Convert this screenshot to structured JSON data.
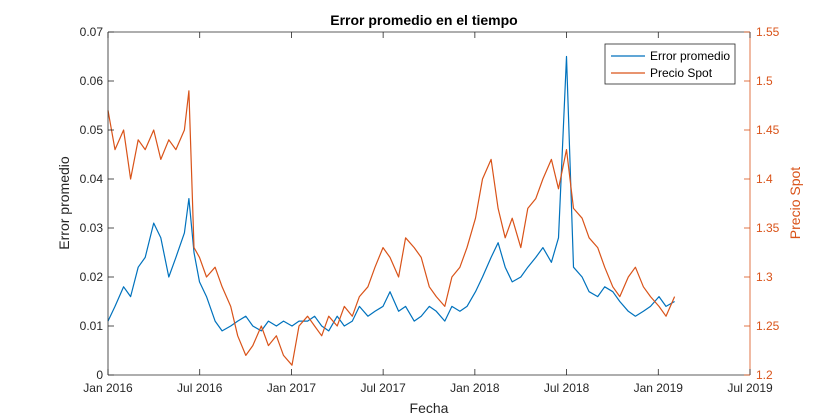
{
  "chart_data": {
    "type": "line",
    "title": "Error promedio en el tiempo",
    "xlabel": "Fecha",
    "ylabel_left": "Error promedio",
    "ylabel_right": "Precio Spot",
    "x_ticks": [
      "Jan 2016",
      "Jul 2016",
      "Jan 2017",
      "Jul 2017",
      "Jan 2018",
      "Jul 2018",
      "Jan 2019",
      "Jul 2019"
    ],
    "y_left_ticks": [
      "0",
      "0.01",
      "0.02",
      "0.03",
      "0.04",
      "0.05",
      "0.06",
      "0.07"
    ],
    "y_right_ticks": [
      "1.2",
      "1.25",
      "1.3",
      "1.35",
      "1.4",
      "1.45",
      "1.5",
      "1.55"
    ],
    "xlim": [
      "2016-01-01",
      "2019-07-01"
    ],
    "ylim_left": [
      0,
      0.07
    ],
    "ylim_right": [
      1.2,
      1.55
    ],
    "grid": false,
    "legend_position": "top-right",
    "colors": {
      "error": "#0072BD",
      "spot": "#D95319",
      "axis": "#262626"
    },
    "series": [
      {
        "name": "Error promedio",
        "axis": "left",
        "color": "#0072BD",
        "x": [
          "2016-01-01",
          "2016-01-15",
          "2016-02-01",
          "2016-02-15",
          "2016-03-01",
          "2016-03-15",
          "2016-04-01",
          "2016-04-15",
          "2016-05-01",
          "2016-05-15",
          "2016-06-01",
          "2016-06-10",
          "2016-06-20",
          "2016-07-01",
          "2016-07-15",
          "2016-08-01",
          "2016-08-15",
          "2016-09-01",
          "2016-09-15",
          "2016-10-01",
          "2016-10-15",
          "2016-11-01",
          "2016-11-15",
          "2016-12-01",
          "2016-12-15",
          "2017-01-01",
          "2017-01-15",
          "2017-02-01",
          "2017-02-15",
          "2017-03-01",
          "2017-03-15",
          "2017-04-01",
          "2017-04-15",
          "2017-05-01",
          "2017-05-15",
          "2017-06-01",
          "2017-06-15",
          "2017-07-01",
          "2017-07-15",
          "2017-08-01",
          "2017-08-15",
          "2017-09-01",
          "2017-09-15",
          "2017-10-01",
          "2017-10-15",
          "2017-11-01",
          "2017-11-15",
          "2017-12-01",
          "2017-12-15",
          "2018-01-01",
          "2018-01-15",
          "2018-02-01",
          "2018-02-15",
          "2018-03-01",
          "2018-03-15",
          "2018-04-01",
          "2018-04-15",
          "2018-05-01",
          "2018-05-15",
          "2018-06-01",
          "2018-06-15",
          "2018-07-01",
          "2018-07-15",
          "2018-08-01",
          "2018-08-15",
          "2018-09-01",
          "2018-09-15",
          "2018-10-01",
          "2018-10-15",
          "2018-11-01",
          "2018-11-15",
          "2018-12-01",
          "2018-12-15",
          "2019-01-01",
          "2019-01-15",
          "2019-02-01"
        ],
        "values": [
          0.011,
          0.014,
          0.018,
          0.016,
          0.022,
          0.024,
          0.031,
          0.028,
          0.02,
          0.024,
          0.029,
          0.036,
          0.025,
          0.019,
          0.016,
          0.011,
          0.009,
          0.01,
          0.011,
          0.012,
          0.01,
          0.009,
          0.011,
          0.01,
          0.011,
          0.01,
          0.011,
          0.011,
          0.012,
          0.01,
          0.009,
          0.012,
          0.01,
          0.011,
          0.014,
          0.012,
          0.013,
          0.014,
          0.017,
          0.013,
          0.014,
          0.011,
          0.012,
          0.014,
          0.013,
          0.011,
          0.014,
          0.013,
          0.014,
          0.017,
          0.02,
          0.024,
          0.027,
          0.022,
          0.019,
          0.02,
          0.022,
          0.024,
          0.026,
          0.023,
          0.028,
          0.065,
          0.022,
          0.02,
          0.017,
          0.016,
          0.018,
          0.017,
          0.015,
          0.013,
          0.012,
          0.013,
          0.014,
          0.016,
          0.014,
          0.015
        ]
      },
      {
        "name": "Precio Spot",
        "axis": "right",
        "color": "#D95319",
        "x": [
          "2016-01-01",
          "2016-01-15",
          "2016-02-01",
          "2016-02-15",
          "2016-03-01",
          "2016-03-15",
          "2016-04-01",
          "2016-04-15",
          "2016-05-01",
          "2016-05-15",
          "2016-06-01",
          "2016-06-10",
          "2016-06-20",
          "2016-07-01",
          "2016-07-15",
          "2016-08-01",
          "2016-08-15",
          "2016-09-01",
          "2016-09-15",
          "2016-10-01",
          "2016-10-15",
          "2016-11-01",
          "2016-11-15",
          "2016-12-01",
          "2016-12-15",
          "2017-01-01",
          "2017-01-15",
          "2017-02-01",
          "2017-02-15",
          "2017-03-01",
          "2017-03-15",
          "2017-04-01",
          "2017-04-15",
          "2017-05-01",
          "2017-05-15",
          "2017-06-01",
          "2017-06-15",
          "2017-07-01",
          "2017-07-15",
          "2017-08-01",
          "2017-08-15",
          "2017-09-01",
          "2017-09-15",
          "2017-10-01",
          "2017-10-15",
          "2017-11-01",
          "2017-11-15",
          "2017-12-01",
          "2017-12-15",
          "2018-01-01",
          "2018-01-15",
          "2018-02-01",
          "2018-02-15",
          "2018-03-01",
          "2018-03-15",
          "2018-04-01",
          "2018-04-15",
          "2018-05-01",
          "2018-05-15",
          "2018-06-01",
          "2018-06-15",
          "2018-07-01",
          "2018-07-15",
          "2018-08-01",
          "2018-08-15",
          "2018-09-01",
          "2018-09-15",
          "2018-10-01",
          "2018-10-15",
          "2018-11-01",
          "2018-11-15",
          "2018-12-01",
          "2018-12-15",
          "2019-01-01",
          "2019-01-15",
          "2019-02-01"
        ],
        "values": [
          1.47,
          1.43,
          1.45,
          1.4,
          1.44,
          1.43,
          1.45,
          1.42,
          1.44,
          1.43,
          1.45,
          1.49,
          1.33,
          1.32,
          1.3,
          1.31,
          1.29,
          1.27,
          1.24,
          1.22,
          1.23,
          1.25,
          1.23,
          1.24,
          1.22,
          1.21,
          1.25,
          1.26,
          1.25,
          1.24,
          1.26,
          1.25,
          1.27,
          1.26,
          1.28,
          1.29,
          1.31,
          1.33,
          1.32,
          1.3,
          1.34,
          1.33,
          1.32,
          1.29,
          1.28,
          1.27,
          1.3,
          1.31,
          1.33,
          1.36,
          1.4,
          1.42,
          1.37,
          1.34,
          1.36,
          1.33,
          1.37,
          1.38,
          1.4,
          1.42,
          1.39,
          1.43,
          1.37,
          1.36,
          1.34,
          1.33,
          1.31,
          1.29,
          1.28,
          1.3,
          1.31,
          1.29,
          1.28,
          1.27,
          1.26,
          1.28
        ]
      }
    ]
  }
}
